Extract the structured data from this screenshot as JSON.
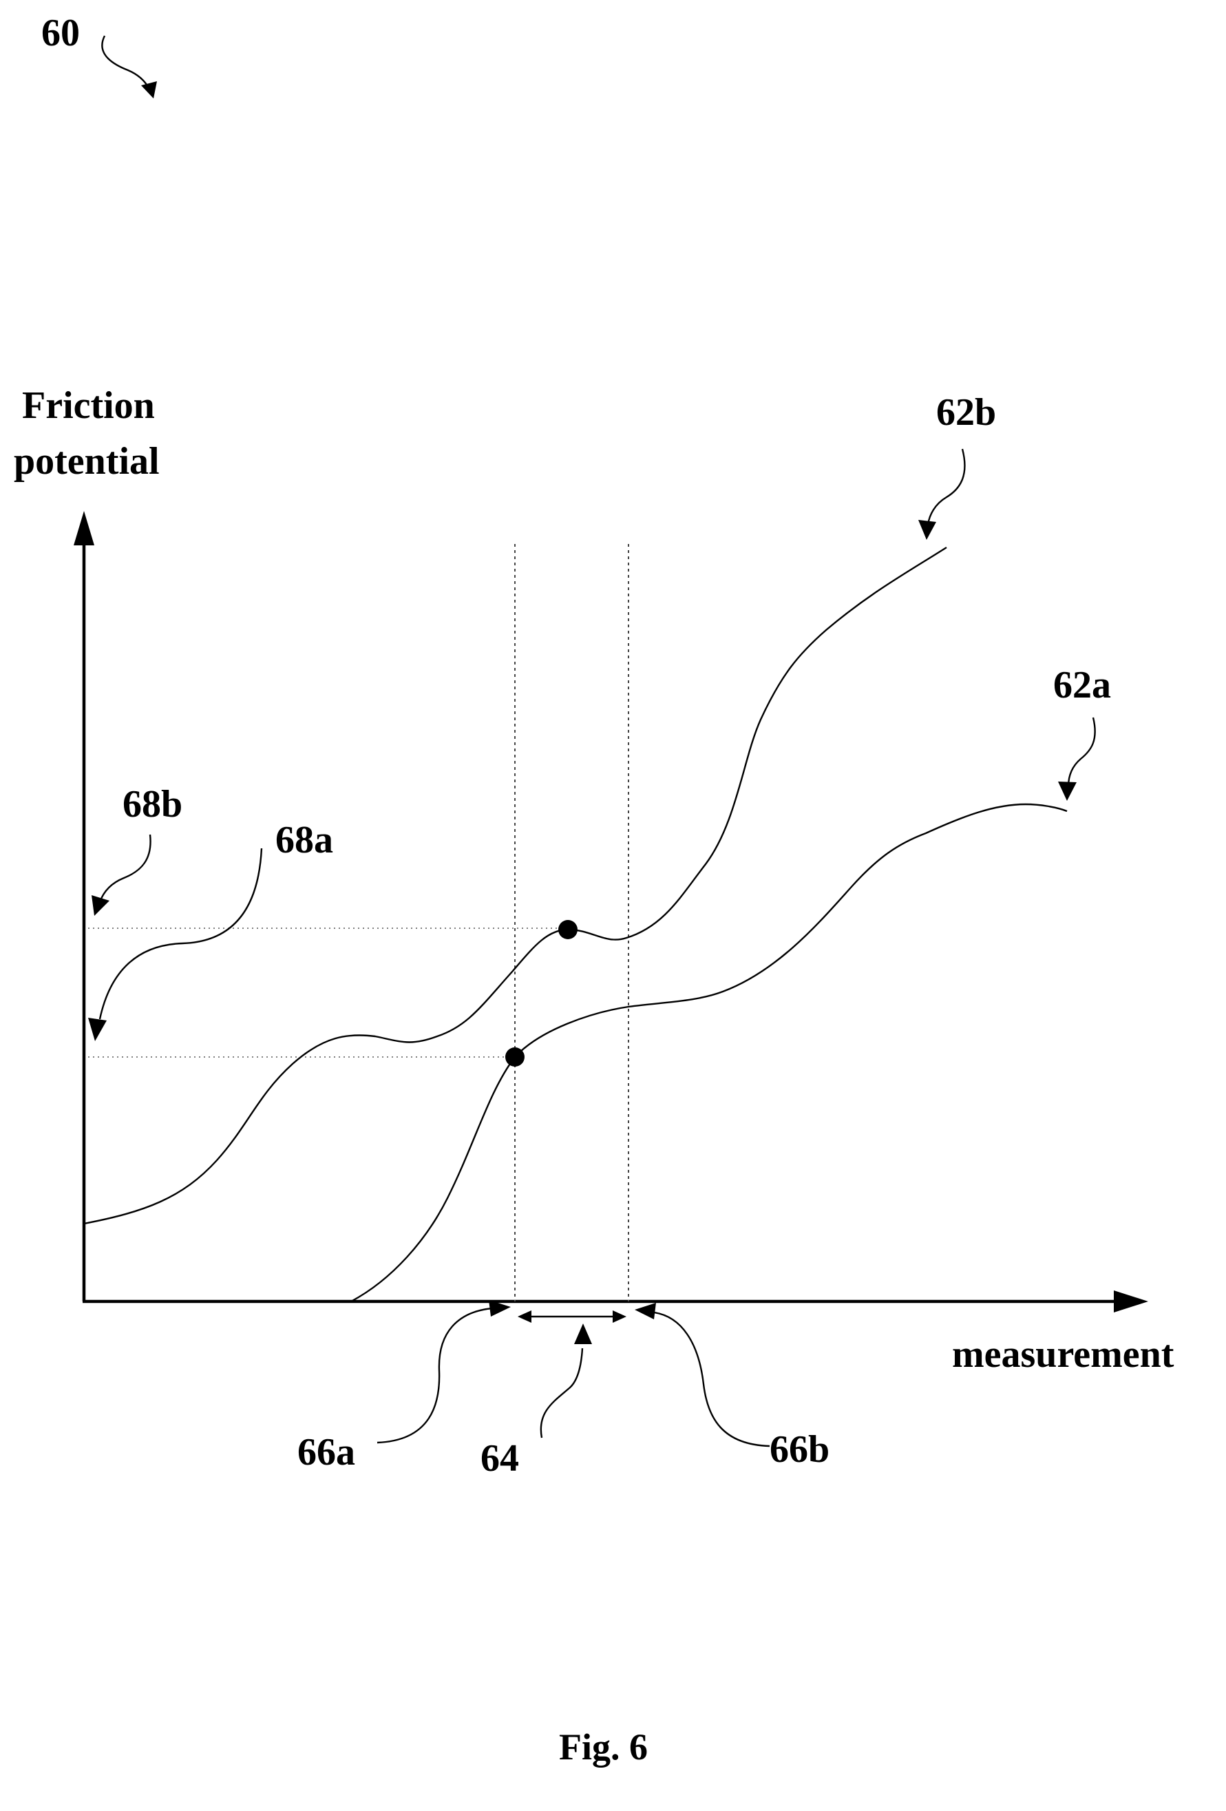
{
  "figure": {
    "ref_main": "60",
    "caption": "Fig. 6"
  },
  "axes": {
    "y_label_line1": "Friction",
    "y_label_line2": "potential",
    "x_label": "measurement"
  },
  "curves": {
    "upper": {
      "ref": "62b"
    },
    "lower": {
      "ref": "62a"
    }
  },
  "markers": {
    "left_bound": "66a",
    "right_bound": "66b",
    "interval": "64",
    "level_upper": "68b",
    "level_lower": "68a"
  }
}
